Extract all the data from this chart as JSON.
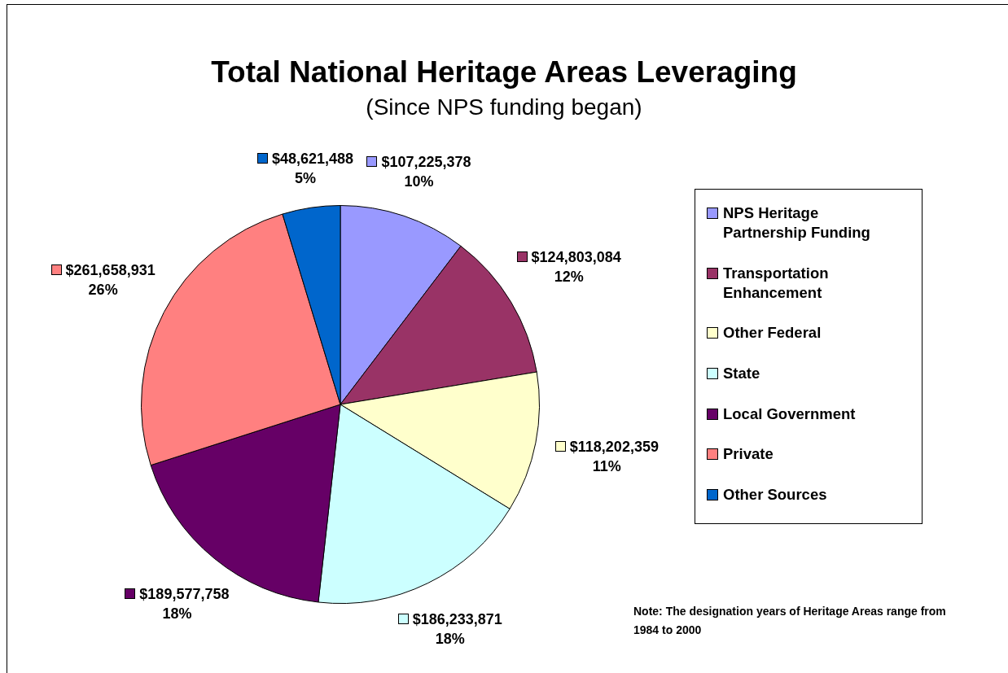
{
  "chart_data": {
    "type": "pie",
    "title": "Total National Heritage Areas Leveraging",
    "subtitle": "(Since NPS funding began)",
    "categories": [
      "NPS Heritage Partnership Funding",
      "Transportation Enhancement",
      "Other Federal",
      "State",
      "Local Government",
      "Private",
      "Other Sources"
    ],
    "values": [
      107225378,
      124803084,
      118202359,
      186233871,
      189577758,
      261658931,
      48621488
    ],
    "colors": [
      "#9999ff",
      "#993366",
      "#ffffcc",
      "#ccffff",
      "#660066",
      "#ff8080",
      "#0066cc"
    ],
    "value_labels": [
      "$107,225,378\n10%",
      "$124,803,084\n12%",
      "$118,202,359\n11%",
      "$186,233,871\n18%",
      "$189,577,758\n18%",
      "$261,658,931\n26%",
      "$48,621,488\n5%"
    ],
    "legend": "right",
    "annotations": [
      "Note: The designation years of Heritage Areas range from 1984 to 2000"
    ]
  }
}
